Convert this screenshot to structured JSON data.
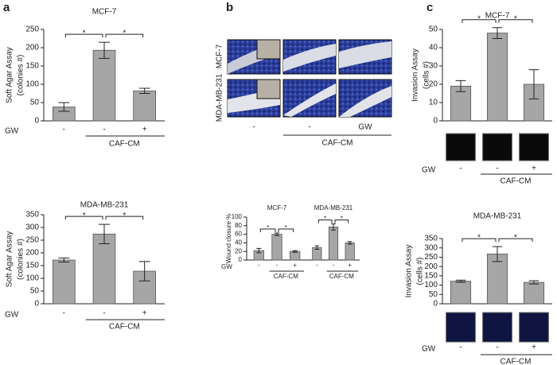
{
  "panel_labels": [
    "a",
    "b",
    "c"
  ],
  "micrographs": {
    "rows": [
      "MCF-7",
      "MDA-MB-231"
    ],
    "conditions": [
      "-",
      "-",
      "GW"
    ],
    "group_label": "CAF-CM"
  },
  "chart_data": [
    {
      "type": "bar",
      "title": "MCF-7",
      "y_label": [
        "Soft Agar Assay",
        "(colonies #)"
      ],
      "categories": [
        "-",
        "-",
        "+"
      ],
      "row_label": "GW",
      "group_label": "CAF-CM",
      "values": [
        38,
        193,
        82
      ],
      "errors": [
        12,
        22,
        7
      ],
      "color": "#a6a6a6",
      "ylim": [
        0,
        250
      ],
      "yticks": [
        0,
        50,
        100,
        150,
        200,
        250
      ],
      "significance": [
        "*",
        "*"
      ]
    },
    {
      "type": "bar",
      "title": "MDA-MB-231",
      "y_label": [
        "Soft Agar Assay",
        "(colonies #)"
      ],
      "categories": [
        "-",
        "-",
        "+"
      ],
      "row_label": "GW",
      "group_label": "CAF-CM",
      "values": [
        172,
        274,
        128
      ],
      "errors": [
        8,
        38,
        38
      ],
      "color": "#a6a6a6",
      "ylim": [
        0,
        350
      ],
      "yticks": [
        0,
        50,
        100,
        150,
        200,
        250,
        300,
        350
      ],
      "significance": [
        "*",
        "*"
      ]
    },
    {
      "type": "grouped_bar",
      "y_label": [
        "Wound closure %"
      ],
      "categories": [
        "-",
        "-",
        "+"
      ],
      "row_label": "GW",
      "group_label": "CAF-CM",
      "color": "#a6a6a6",
      "ylim": [
        0,
        100
      ],
      "yticks": [
        0,
        20,
        40,
        60,
        80,
        100
      ],
      "groups": [
        {
          "name": "MCF-7",
          "values": [
            22,
            60,
            20
          ],
          "errors": [
            5,
            3,
            2
          ],
          "significance": [
            "*",
            "*"
          ]
        },
        {
          "name": "MDA-MB-231",
          "values": [
            29,
            77,
            40
          ],
          "errors": [
            4,
            7,
            3
          ],
          "significance": [
            "*",
            "*"
          ]
        }
      ]
    },
    {
      "type": "bar",
      "title": "MCF-7",
      "y_label": [
        "Invasion Assay",
        "(cells #)"
      ],
      "categories": [
        "-",
        "-",
        "+"
      ],
      "row_label": "GW",
      "group_label": "CAF-CM",
      "values": [
        19,
        48,
        20
      ],
      "errors": [
        3,
        3,
        8
      ],
      "color": "#a6a6a6",
      "ylim": [
        0,
        50
      ],
      "yticks": [
        0,
        10,
        20,
        30,
        40,
        50
      ],
      "significance": [
        "*",
        "*"
      ]
    },
    {
      "type": "bar",
      "title": "MDA-MB-231",
      "y_label": [
        "Invasion Assay",
        "(cells #)"
      ],
      "categories": [
        "-",
        "-",
        "+"
      ],
      "row_label": "GW",
      "group_label": "CAF-CM",
      "values": [
        121,
        267,
        115
      ],
      "errors": [
        6,
        40,
        9
      ],
      "color": "#a6a6a6",
      "ylim": [
        0,
        350
      ],
      "yticks": [
        0,
        50,
        100,
        150,
        200,
        250,
        300,
        350
      ],
      "significance": [
        "*",
        "*"
      ]
    }
  ]
}
